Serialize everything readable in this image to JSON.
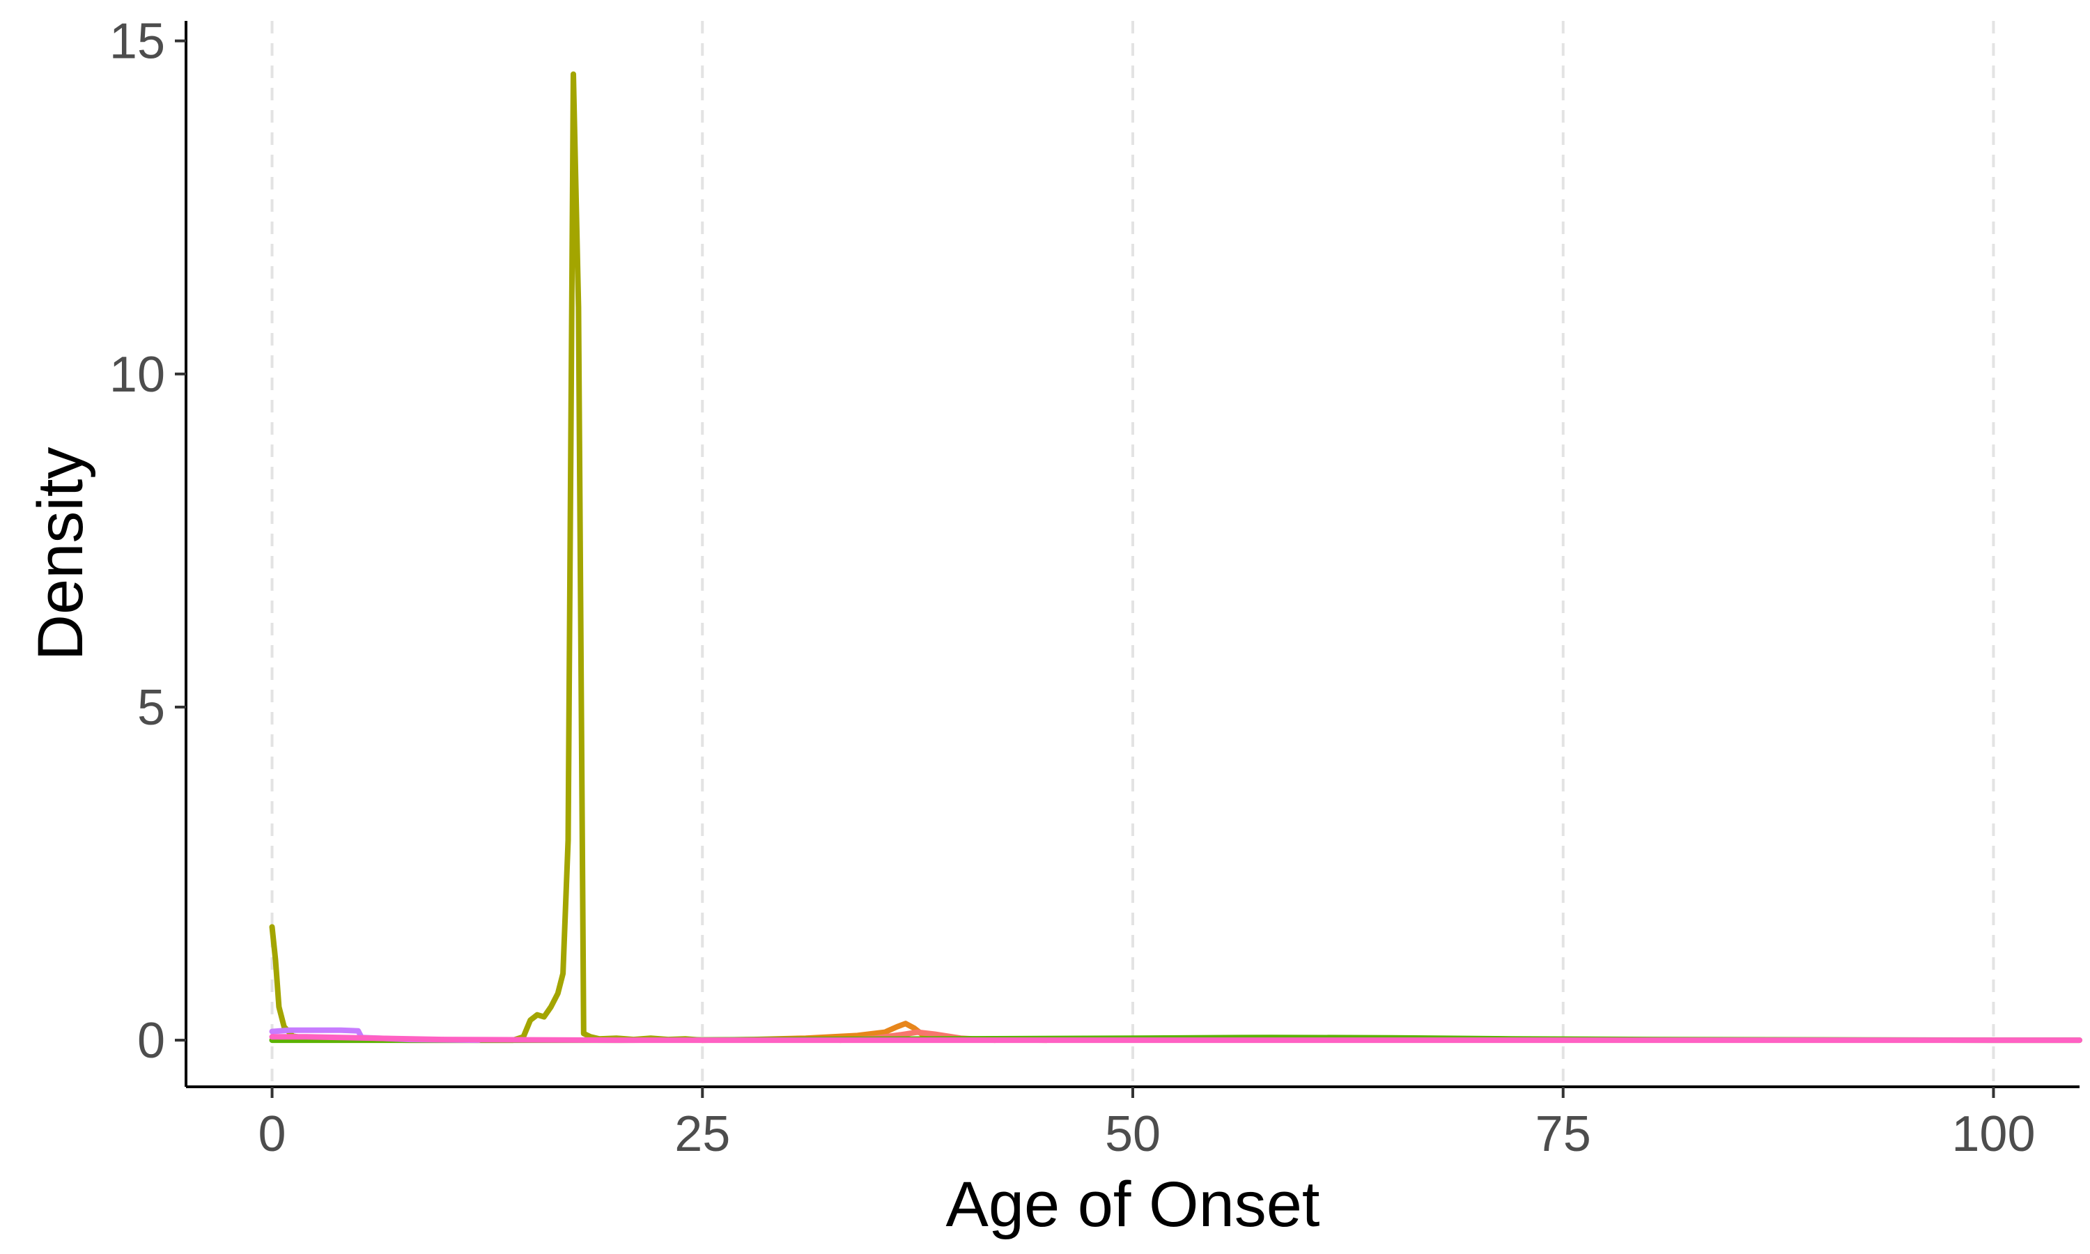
{
  "chart_data": {
    "type": "line",
    "xlabel": "Age of Onset",
    "ylabel": "Density",
    "xlim": [
      -5,
      105
    ],
    "ylim": [
      -0.7,
      15.3
    ],
    "xticks": [
      0,
      25,
      50,
      75,
      100
    ],
    "yticks": [
      0,
      5,
      10,
      15
    ],
    "xtick_labels": [
      "0",
      "25",
      "50",
      "75",
      "100"
    ],
    "ytick_labels": [
      "0",
      "5",
      "10",
      "15"
    ],
    "grid": "vertical-dashed",
    "legend": "none",
    "series": [
      {
        "color": "#a3a500",
        "points": [
          [
            0,
            1.7
          ],
          [
            0.2,
            1.2
          ],
          [
            0.4,
            0.5
          ],
          [
            0.7,
            0.2
          ],
          [
            1.2,
            0.06
          ],
          [
            2,
            0.03
          ],
          [
            4,
            0.01
          ],
          [
            8,
            0
          ],
          [
            12,
            0
          ],
          [
            14,
            0
          ],
          [
            14.6,
            0.05
          ],
          [
            15,
            0.3
          ],
          [
            15.4,
            0.38
          ],
          [
            15.8,
            0.35
          ],
          [
            16.2,
            0.5
          ],
          [
            16.6,
            0.7
          ],
          [
            16.9,
            1.0
          ],
          [
            17.2,
            3.0
          ],
          [
            17.5,
            14.5
          ],
          [
            17.8,
            11.0
          ],
          [
            18.1,
            0.1
          ],
          [
            18.5,
            0.05
          ],
          [
            19,
            0.02
          ],
          [
            20,
            0.03
          ],
          [
            21,
            0.01
          ],
          [
            22,
            0.03
          ],
          [
            23,
            0.01
          ],
          [
            24,
            0.02
          ],
          [
            25,
            0
          ]
        ]
      },
      {
        "color": "#e7861b",
        "points": [
          [
            25,
            0
          ],
          [
            28,
            0.01
          ],
          [
            31,
            0.03
          ],
          [
            34,
            0.07
          ],
          [
            35.6,
            0.12
          ],
          [
            36.3,
            0.2
          ],
          [
            36.8,
            0.25
          ],
          [
            37.3,
            0.18
          ],
          [
            37.8,
            0.08
          ],
          [
            39,
            0.03
          ],
          [
            41,
            0.01
          ],
          [
            45,
            0
          ]
        ]
      },
      {
        "color": "#f8766d",
        "points": [
          [
            33,
            0
          ],
          [
            35,
            0.03
          ],
          [
            36.5,
            0.08
          ],
          [
            37.5,
            0.12
          ],
          [
            38.5,
            0.09
          ],
          [
            40,
            0.03
          ],
          [
            42,
            0
          ]
        ]
      },
      {
        "color": "#5bb300",
        "points": [
          [
            0,
            0
          ],
          [
            5,
            0
          ],
          [
            10,
            0
          ],
          [
            20,
            0
          ],
          [
            30,
            0.01
          ],
          [
            40,
            0.02
          ],
          [
            50,
            0.03
          ],
          [
            58,
            0.04
          ],
          [
            65,
            0.035
          ],
          [
            72,
            0.02
          ],
          [
            80,
            0.01
          ],
          [
            90,
            0.005
          ],
          [
            100,
            0
          ],
          [
            105,
            0
          ]
        ]
      },
      {
        "color": "#c77cff",
        "points": [
          [
            0,
            0.13
          ],
          [
            1,
            0.15
          ],
          [
            2,
            0.15
          ],
          [
            3,
            0.15
          ],
          [
            4,
            0.15
          ],
          [
            5,
            0.14
          ],
          [
            5.2,
            0.04
          ],
          [
            8,
            0.01
          ],
          [
            12,
            0
          ]
        ]
      },
      {
        "color": "#ff61c3",
        "points": [
          [
            0,
            0.05
          ],
          [
            2,
            0.05
          ],
          [
            4,
            0.04
          ],
          [
            6,
            0.03
          ],
          [
            10,
            0.01
          ],
          [
            20,
            0
          ],
          [
            40,
            0
          ],
          [
            60,
            0
          ],
          [
            80,
            0
          ],
          [
            95,
            0
          ],
          [
            105,
            0
          ]
        ]
      }
    ]
  }
}
